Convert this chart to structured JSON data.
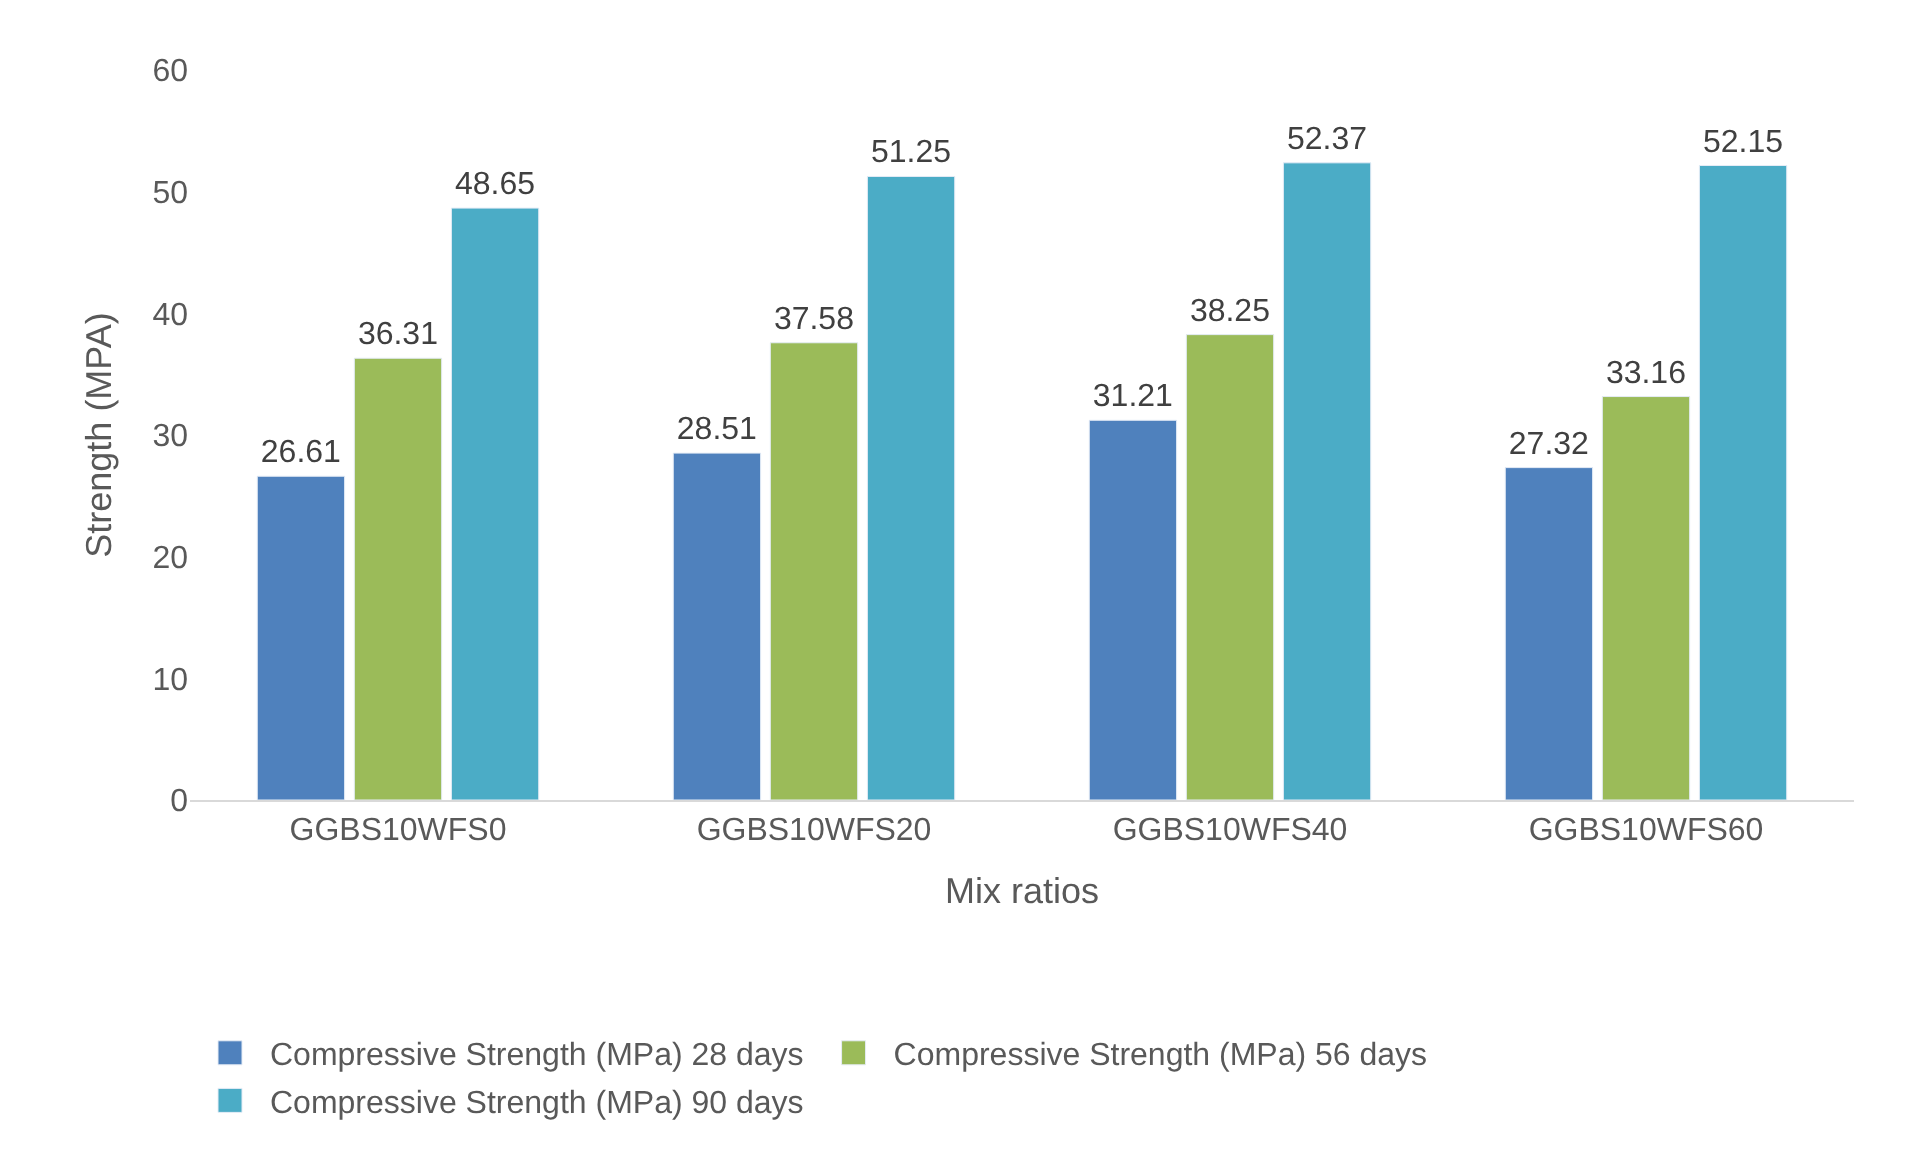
{
  "chart_data": {
    "type": "bar",
    "xlabel": "Mix ratios",
    "ylabel": "Strength (MPA)",
    "categories": [
      "GGBS10WFS0",
      "GGBS10WFS20",
      "GGBS10WFS40",
      "GGBS10WFS60"
    ],
    "series": [
      {
        "name": "Compressive Strength (MPa) 28 days",
        "color": "#4f81bd",
        "values": [
          26.61,
          28.51,
          31.21,
          27.32
        ]
      },
      {
        "name": "Compressive Strength (MPa) 56 days",
        "color": "#9bbb59",
        "values": [
          36.31,
          37.58,
          38.25,
          33.16
        ]
      },
      {
        "name": "Compressive Strength (MPa) 90 days",
        "color": "#4bacc6",
        "values": [
          48.65,
          51.25,
          52.37,
          52.15
        ]
      }
    ],
    "ylim": [
      0,
      60
    ],
    "yticks": [
      0,
      10,
      20,
      30,
      40,
      50,
      60
    ],
    "grid": false,
    "legend": "bottom",
    "data_labels": true
  }
}
